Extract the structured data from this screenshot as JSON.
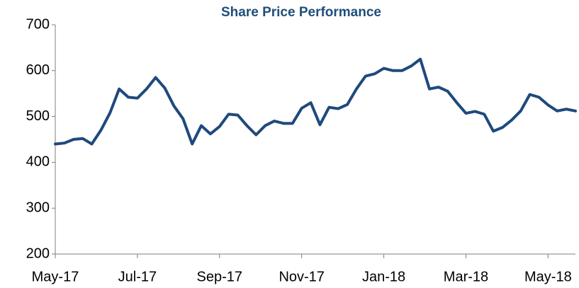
{
  "chart_data": {
    "type": "line",
    "title": "Share Price Performance",
    "categories": [
      "May-17",
      null,
      null,
      null,
      null,
      null,
      null,
      null,
      null,
      "Jul-17",
      null,
      null,
      null,
      null,
      null,
      null,
      null,
      null,
      "Sep-17",
      null,
      null,
      null,
      null,
      null,
      null,
      null,
      null,
      "Nov-17",
      null,
      null,
      null,
      null,
      null,
      null,
      null,
      null,
      "Jan-18",
      null,
      null,
      null,
      null,
      null,
      null,
      null,
      null,
      "Mar-18",
      null,
      null,
      null,
      null,
      null,
      null,
      null,
      null,
      "May-18",
      null,
      null,
      null
    ],
    "series": [
      {
        "name": "Share Price",
        "color": "#1f497d",
        "values": [
          440,
          442,
          450,
          452,
          440,
          470,
          508,
          560,
          542,
          540,
          560,
          585,
          562,
          523,
          495,
          440,
          480,
          462,
          478,
          505,
          503,
          480,
          460,
          480,
          490,
          485,
          485,
          518,
          530,
          482,
          520,
          517,
          526,
          560,
          588,
          593,
          605,
          600,
          600,
          610,
          625,
          560,
          564,
          555,
          530,
          507,
          511,
          505,
          468,
          476,
          492,
          512,
          548,
          542,
          525,
          512,
          516,
          512
        ]
      }
    ],
    "ylim": [
      200,
      700
    ],
    "yticks": [
      200,
      300,
      400,
      500,
      600,
      700
    ],
    "grid": false
  }
}
